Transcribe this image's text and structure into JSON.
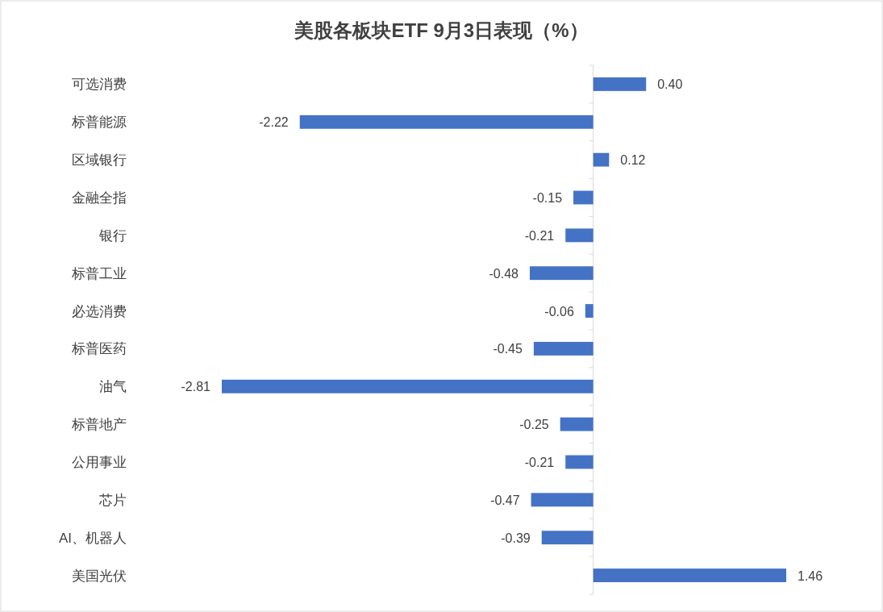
{
  "chart_data": {
    "type": "bar",
    "orientation": "horizontal",
    "title": "美股各板块ETF  9月3日表现（%）",
    "categories": [
      "可选消费",
      "标普能源",
      "区域银行",
      "金融全指",
      "银行",
      "标普工业",
      "必选消费",
      "标普医药",
      "油气",
      "标普地产",
      "公用事业",
      "芯片",
      "AI、机器人",
      "美国光伏"
    ],
    "values": [
      0.4,
      -2.22,
      0.12,
      -0.15,
      -0.21,
      -0.48,
      -0.06,
      -0.45,
      -2.81,
      -0.25,
      -0.21,
      -0.47,
      -0.39,
      1.46
    ],
    "value_labels": [
      "0.40",
      "-2.22",
      "0.12",
      "-0.15",
      "-0.21",
      "-0.48",
      "-0.06",
      "-0.45",
      "-2.81",
      "-0.25",
      "-0.21",
      "-0.47",
      "-0.39",
      "1.46"
    ],
    "color": "#4472c4"
  }
}
